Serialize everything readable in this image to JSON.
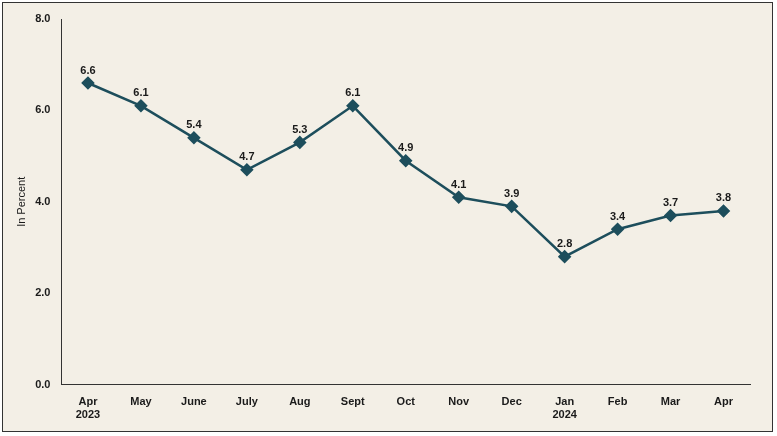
{
  "chart_data": {
    "type": "line",
    "y_label": "In Percent",
    "categories": [
      "Apr 2023",
      "May",
      "June",
      "July",
      "Aug",
      "Sept",
      "Oct",
      "Nov",
      "Dec",
      "Jan 2024",
      "Feb",
      "Mar",
      "Apr"
    ],
    "values": [
      6.6,
      6.1,
      5.4,
      4.7,
      5.3,
      6.1,
      4.9,
      4.1,
      3.9,
      2.8,
      3.4,
      3.7,
      3.8
    ],
    "color": "#1d4e5c",
    "marker": "diamond",
    "line_style": "solid",
    "data_labels": true,
    "ylim": [
      0,
      8
    ],
    "yticks": [
      {
        "value": 0,
        "label": "0.0"
      },
      {
        "value": 2,
        "label": "2.0"
      },
      {
        "value": 4,
        "label": "4.0"
      },
      {
        "value": 6,
        "label": "6.0"
      },
      {
        "value": 8,
        "label": "8.0"
      }
    ],
    "grid": false
  }
}
